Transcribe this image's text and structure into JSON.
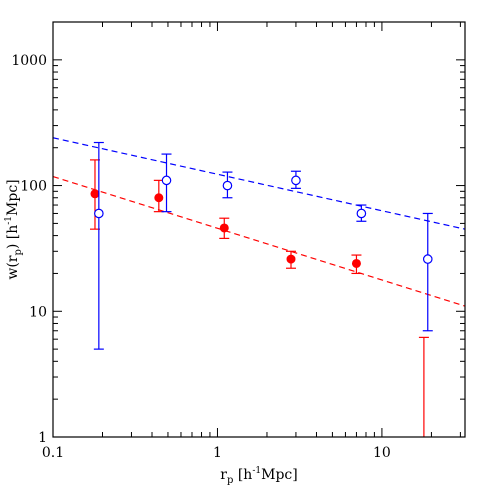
{
  "chart_data": {
    "type": "scatter",
    "title": "",
    "x_scale": "log",
    "y_scale": "log",
    "xlim": [
      0.1,
      32
    ],
    "ylim": [
      1,
      2000
    ],
    "grid": false,
    "legend": "none",
    "xlabel": {
      "main": "r",
      "sub": "p",
      "unit_open": " [h",
      "sup": "-1",
      "unit_close": "Mpc]"
    },
    "ylabel": {
      "main": "w(r",
      "sub": "p",
      "unit_open": ") [h",
      "sup": "-1",
      "unit_close": "Mpc]"
    },
    "x_ticks": [
      {
        "value": 0.1,
        "label": "0.1"
      },
      {
        "value": 1,
        "label": "1"
      },
      {
        "value": 10,
        "label": "10"
      }
    ],
    "y_ticks": [
      {
        "value": 1,
        "label": "1"
      },
      {
        "value": 10,
        "label": "10"
      },
      {
        "value": 100,
        "label": "100"
      },
      {
        "value": 1000,
        "label": "1000"
      }
    ],
    "series": [
      {
        "color": "#ff0000",
        "marker": "filled-circle",
        "points": [
          {
            "x": 0.18,
            "y": 86,
            "ylo": 45,
            "yhi": 160
          },
          {
            "x": 0.44,
            "y": 80,
            "ylo": 62,
            "yhi": 110
          },
          {
            "x": 1.1,
            "y": 46,
            "ylo": 38,
            "yhi": 55
          },
          {
            "x": 2.8,
            "y": 26,
            "ylo": 22,
            "yhi": 30
          },
          {
            "x": 7.0,
            "y": 24,
            "ylo": 20,
            "yhi": 28
          },
          {
            "x": 18.0,
            "y": null,
            "ylo": 1,
            "yhi": 6.2
          }
        ],
        "fit_line": {
          "x": [
            0.1,
            32
          ],
          "y": [
            118,
            11
          ]
        }
      },
      {
        "color": "#0000ff",
        "marker": "open-circle",
        "points": [
          {
            "x": 0.19,
            "y": 60,
            "ylo": 5,
            "yhi": 220
          },
          {
            "x": 0.49,
            "y": 110,
            "ylo": 62,
            "yhi": 178
          },
          {
            "x": 1.15,
            "y": 100,
            "ylo": 80,
            "yhi": 128
          },
          {
            "x": 3.0,
            "y": 110,
            "ylo": 95,
            "yhi": 130
          },
          {
            "x": 7.5,
            "y": 60,
            "ylo": 52,
            "yhi": 70
          },
          {
            "x": 19.0,
            "y": 26,
            "ylo": 7,
            "yhi": 60
          }
        ],
        "fit_line": {
          "x": [
            0.1,
            32
          ],
          "y": [
            240,
            45
          ]
        }
      }
    ]
  }
}
